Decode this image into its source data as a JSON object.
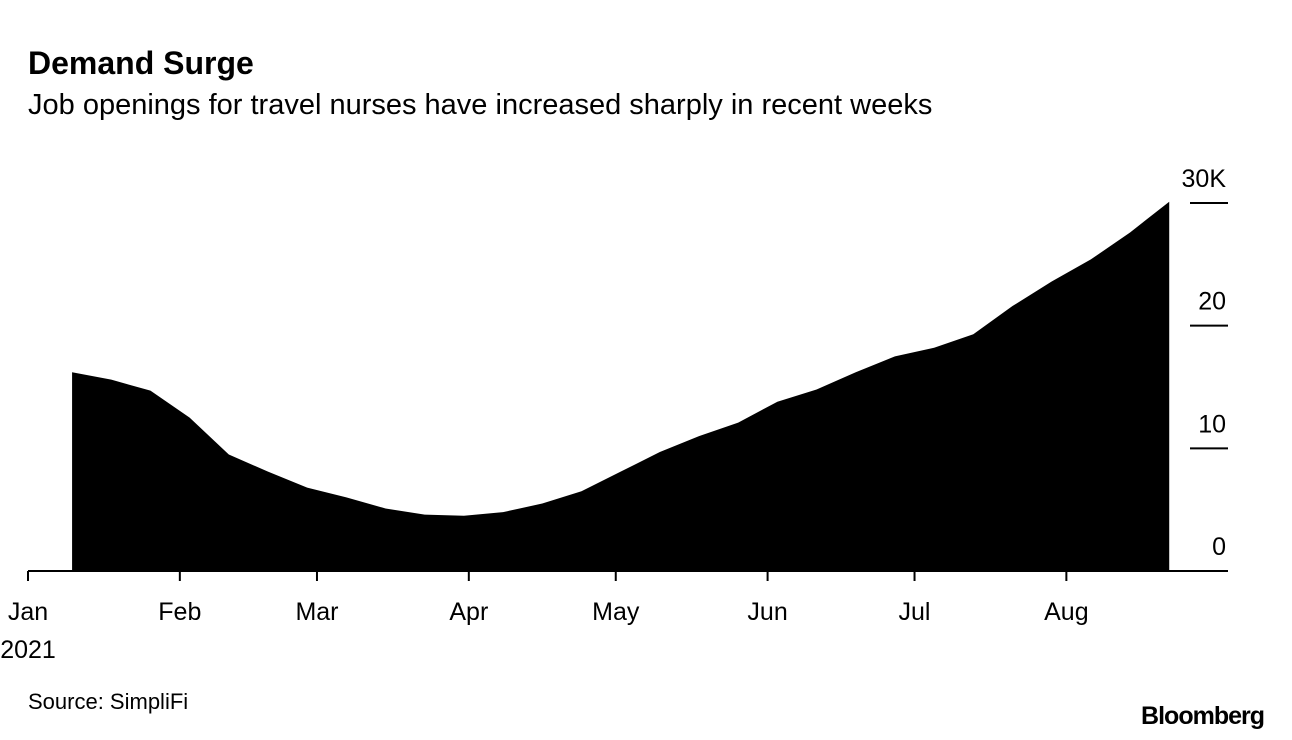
{
  "chart_data": {
    "type": "area",
    "title": "Demand Surge",
    "subtitle": "Job openings for travel nurses have increased sharply in recent weeks",
    "source": "Source: SimpliFi",
    "brand": "Bloomberg",
    "color": "#000000",
    "x": [
      9,
      17,
      25,
      33,
      41,
      49,
      57,
      65,
      73,
      81,
      89,
      97,
      105,
      113,
      121,
      129,
      137,
      145,
      153,
      161,
      169,
      177,
      185,
      193,
      201,
      209,
      217,
      225,
      233
    ],
    "values": [
      16.2,
      15.6,
      14.7,
      12.5,
      9.5,
      8.1,
      6.8,
      6.0,
      5.1,
      4.6,
      4.5,
      4.8,
      5.5,
      6.5,
      8.1,
      9.7,
      11.0,
      12.1,
      13.8,
      14.8,
      16.2,
      17.5,
      18.2,
      19.3,
      21.6,
      23.6,
      25.4,
      27.6,
      30.1
    ],
    "xlim": [
      0,
      245
    ],
    "xticks": [
      {
        "value": 0,
        "label": "Jan"
      },
      {
        "value": 31,
        "label": "Feb"
      },
      {
        "value": 59,
        "label": "Mar"
      },
      {
        "value": 90,
        "label": "Apr"
      },
      {
        "value": 120,
        "label": "May"
      },
      {
        "value": 151,
        "label": "Jun"
      },
      {
        "value": 181,
        "label": "Jul"
      },
      {
        "value": 212,
        "label": "Aug"
      }
    ],
    "xtick_sublabel": "2021",
    "ylim": [
      0,
      30
    ],
    "yticks": [
      0,
      10,
      20,
      {
        "value": 30,
        "label": "30K"
      }
    ]
  }
}
